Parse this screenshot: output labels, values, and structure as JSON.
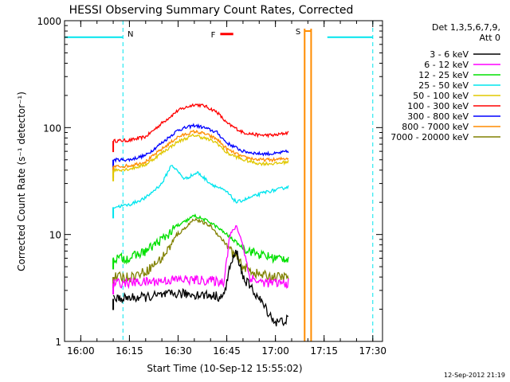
{
  "chart_data": {
    "type": "line",
    "title": "HESSI Observing Summary Count Rates, Corrected",
    "xlabel": "Start Time (10-Sep-12 15:55:02)",
    "ylabel": "Corrected Count Rate (s⁻¹ detector⁻¹)",
    "yscale": "log",
    "ylim": [
      1,
      1000
    ],
    "xlim": [
      "15:55",
      "17:33"
    ],
    "x_ticks": [
      "16:00",
      "16:15",
      "16:30",
      "16:45",
      "17:00",
      "17:15",
      "17:30"
    ],
    "y_ticks": [
      "1",
      "10",
      "100",
      "1000"
    ],
    "footer": "12-Sep-2012 21:19",
    "legend": {
      "placement": "right",
      "title_lines": [
        "Det 1,3,5,6,7,9,",
        "Att 0"
      ],
      "entries": [
        {
          "label": "3 - 6 keV",
          "color": "#000000"
        },
        {
          "label": "6 - 12 keV",
          "color": "#ff00ff"
        },
        {
          "label": "12 - 25 keV",
          "color": "#00e000"
        },
        {
          "label": "25 - 50 keV",
          "color": "#00e5ee"
        },
        {
          "label": "50 - 100 keV",
          "color": "#e0c800"
        },
        {
          "label": "100 - 300 keV",
          "color": "#ff0000"
        },
        {
          "label": "300 - 800 keV",
          "color": "#0000ff"
        },
        {
          "label": "800 - 7000 keV",
          "color": "#ff8c00"
        },
        {
          "label": "7000 - 20000 keV",
          "color": "#808000"
        }
      ]
    },
    "annotations": [
      {
        "label": "N",
        "color": "#00e5ee"
      },
      {
        "label": "F",
        "color": "#ff0000"
      },
      {
        "label": "S",
        "color": "#ff8c00"
      }
    ],
    "night_segments": [
      {
        "start": "15:55",
        "end": "16:13",
        "level": 700
      },
      {
        "start": "17:16",
        "end": "17:30",
        "level": 700
      }
    ],
    "saa_segment": {
      "start": "17:09",
      "end": "17:11",
      "level": 800
    },
    "flare_segment": {
      "start": "16:43",
      "end": "16:47",
      "level": 750
    },
    "series": [
      {
        "name": "100 - 300 keV",
        "color": "#ff0000",
        "x": [
          "16:10",
          "16:15",
          "16:20",
          "16:25",
          "16:30",
          "16:35",
          "16:38",
          "16:42",
          "16:45",
          "16:50",
          "16:55",
          "17:00",
          "17:04"
        ],
        "values": [
          75,
          76,
          82,
          110,
          145,
          165,
          160,
          140,
          110,
          90,
          85,
          85,
          90
        ]
      },
      {
        "name": "300 - 800 keV",
        "color": "#0000ff",
        "x": [
          "16:10",
          "16:15",
          "16:20",
          "16:25",
          "16:30",
          "16:35",
          "16:38",
          "16:42",
          "16:45",
          "16:50",
          "16:55",
          "17:00",
          "17:04"
        ],
        "values": [
          50,
          50,
          55,
          72,
          95,
          105,
          100,
          90,
          72,
          60,
          57,
          57,
          60
        ]
      },
      {
        "name": "800 - 7000 keV",
        "color": "#ff8c00",
        "x": [
          "16:10",
          "16:15",
          "16:20",
          "16:25",
          "16:30",
          "16:35",
          "16:38",
          "16:42",
          "16:45",
          "16:50",
          "16:55",
          "17:00",
          "17:04"
        ],
        "values": [
          43,
          44,
          48,
          63,
          82,
          92,
          88,
          78,
          63,
          53,
          50,
          50,
          52
        ]
      },
      {
        "name": "50 - 100 keV",
        "color": "#e0c800",
        "x": [
          "16:10",
          "16:15",
          "16:20",
          "16:25",
          "16:30",
          "16:35",
          "16:38",
          "16:42",
          "16:45",
          "16:50",
          "16:55",
          "17:00",
          "17:04"
        ],
        "values": [
          40,
          41,
          45,
          58,
          74,
          85,
          80,
          72,
          58,
          50,
          46,
          46,
          48
        ]
      },
      {
        "name": "25 - 50 keV",
        "color": "#00e5ee",
        "x": [
          "16:10",
          "16:15",
          "16:20",
          "16:25",
          "16:28",
          "16:32",
          "16:36",
          "16:40",
          "16:45",
          "16:48",
          "16:52",
          "16:57",
          "17:00",
          "17:04"
        ],
        "values": [
          18,
          19,
          22,
          30,
          45,
          33,
          38,
          30,
          25,
          20,
          22,
          25,
          26,
          28
        ]
      },
      {
        "name": "12 - 25 keV",
        "color": "#00e000",
        "x": [
          "16:10",
          "16:15",
          "16:20",
          "16:25",
          "16:30",
          "16:35",
          "16:40",
          "16:45",
          "16:50",
          "16:55",
          "17:00",
          "17:04"
        ],
        "values": [
          6,
          6,
          7,
          9,
          12,
          15,
          13,
          10,
          7.5,
          6.5,
          6,
          6
        ]
      },
      {
        "name": "7000 - 20000 keV",
        "color": "#808000",
        "x": [
          "16:10",
          "16:15",
          "16:20",
          "16:25",
          "16:30",
          "16:35",
          "16:40",
          "16:45",
          "16:50",
          "16:55",
          "17:00",
          "17:04"
        ],
        "values": [
          4,
          4,
          4.5,
          6,
          10,
          14,
          12,
          8,
          5,
          4.2,
          4,
          4
        ]
      },
      {
        "name": "6 - 12 keV",
        "color": "#ff00ff",
        "x": [
          "16:10",
          "16:20",
          "16:30",
          "16:40",
          "16:44",
          "16:46",
          "16:48",
          "16:50",
          "16:52",
          "16:55",
          "17:00",
          "17:04"
        ],
        "values": [
          3.5,
          3.6,
          3.8,
          3.7,
          3.6,
          10,
          12,
          8,
          4,
          3.6,
          3.5,
          3.5
        ]
      },
      {
        "name": "3 - 6 keV",
        "color": "#000000",
        "x": [
          "16:10",
          "16:20",
          "16:30",
          "16:40",
          "16:44",
          "16:46",
          "16:48",
          "16:50",
          "16:55",
          "17:00",
          "17:04"
        ],
        "values": [
          2.5,
          2.6,
          2.8,
          2.7,
          2.6,
          5,
          7,
          4,
          2.5,
          1.5,
          1.6
        ]
      }
    ]
  }
}
